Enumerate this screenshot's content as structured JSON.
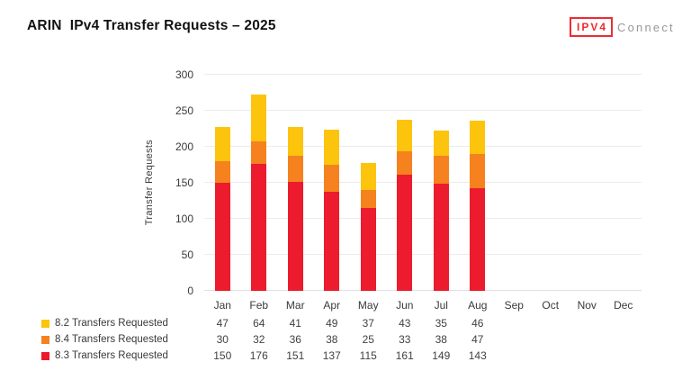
{
  "title": "ARIN  IPv4 Transfer Requests – 2025",
  "logo": {
    "boxed_text": "IPV4",
    "rest_text": "Connect",
    "red": "#ee2b33",
    "gray": "#97999b"
  },
  "chart_data": {
    "type": "bar",
    "stacked": true,
    "title": "ARIN IPv4 Transfer Requests – 2025",
    "xlabel": "",
    "ylabel": "Transfer Requests",
    "ylim": [
      0,
      300
    ],
    "ytick_step": 50,
    "grid": true,
    "legend_position": "bottom-left",
    "categories": [
      "Jan",
      "Feb",
      "Mar",
      "Apr",
      "May",
      "Jun",
      "Jul",
      "Aug",
      "Sep",
      "Oct",
      "Nov",
      "Dec"
    ],
    "series": [
      {
        "name": "8.2 Transfers Requested",
        "color": "#fcc40d",
        "values": [
          47,
          64,
          41,
          49,
          37,
          43,
          35,
          46,
          null,
          null,
          null,
          null
        ]
      },
      {
        "name": "8.4 Transfers Requested",
        "color": "#f5821f",
        "values": [
          30,
          32,
          36,
          38,
          25,
          33,
          38,
          47,
          null,
          null,
          null,
          null
        ]
      },
      {
        "name": "8.3 Transfers Requested",
        "color": "#ec1b2e",
        "values": [
          150,
          176,
          151,
          137,
          115,
          161,
          149,
          143,
          null,
          null,
          null,
          null
        ]
      }
    ],
    "stack_order_bottom_to_top": [
      "8.3 Transfers Requested",
      "8.4 Transfers Requested",
      "8.2 Transfers Requested"
    ],
    "bar_totals": [
      227,
      272,
      228,
      224,
      177,
      237,
      222,
      236,
      null,
      null,
      null,
      null
    ]
  },
  "colors": {
    "gridline": "#ececec",
    "axis_text": "#3a3a3a"
  }
}
